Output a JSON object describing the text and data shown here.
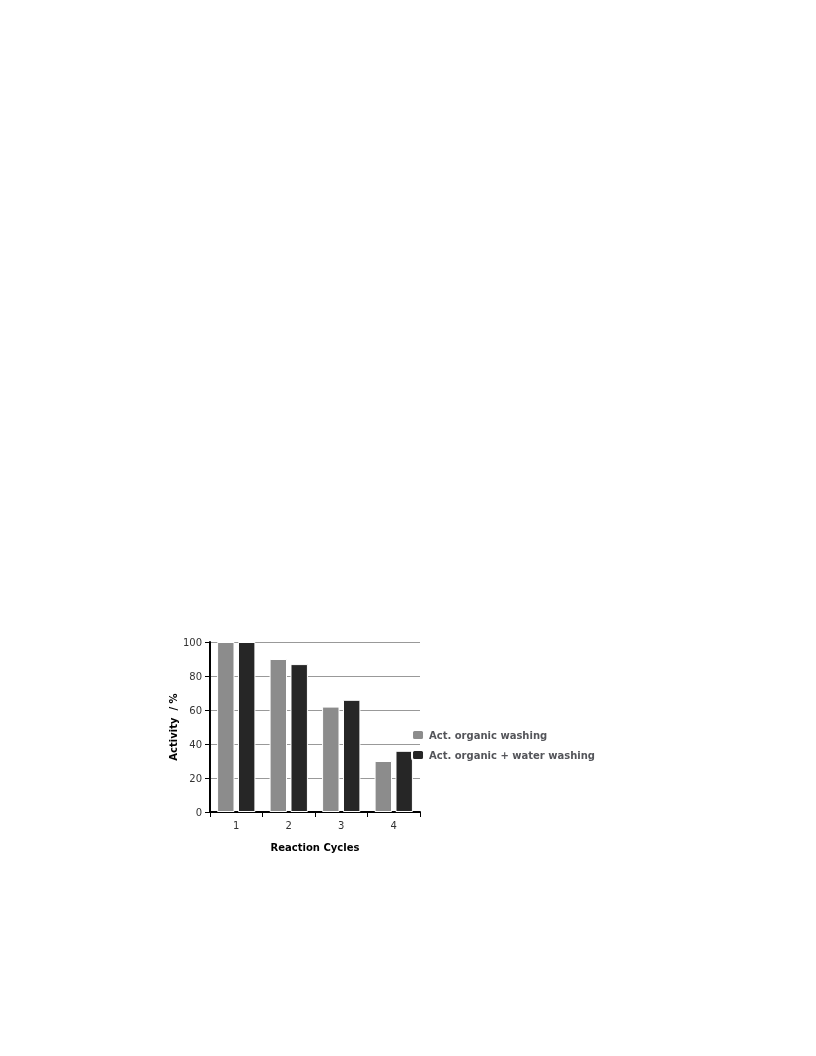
{
  "chart_data": {
    "type": "bar",
    "xlabel": "Reaction Cycles",
    "ylabel": "Activity  / %",
    "categories": [
      "1",
      "2",
      "3",
      "4"
    ],
    "series": [
      {
        "name": "Act. organic washing",
        "color": "#8c8c8c",
        "values": [
          100,
          90,
          62,
          30
        ]
      },
      {
        "name": "Act. organic + water washing",
        "color": "#262626",
        "values": [
          100,
          87,
          66,
          36
        ]
      }
    ],
    "ylim": [
      0,
      100
    ],
    "yticks": [
      0,
      20,
      40,
      60,
      80,
      100
    ],
    "grid": "y",
    "legend": "right"
  }
}
